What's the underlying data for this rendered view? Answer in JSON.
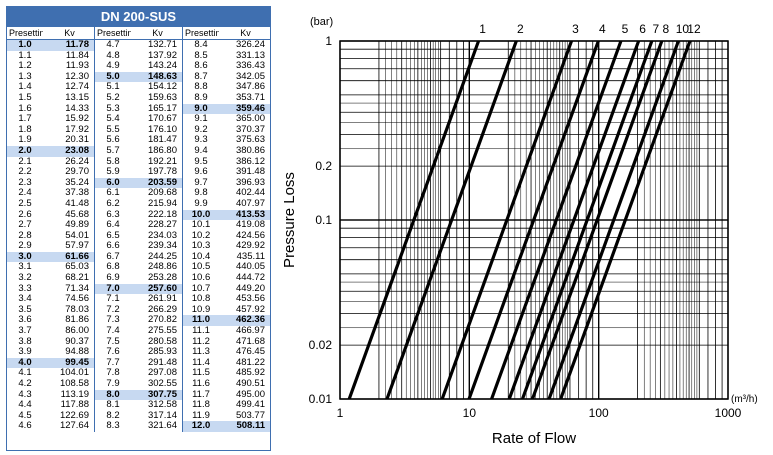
{
  "table": {
    "title": "DN 200-SUS",
    "headers": [
      "Presetting",
      "Kv",
      "Presetting",
      "Kv",
      "Presetting",
      "Kv"
    ],
    "columns": [
      [
        [
          "1.0",
          "11.78"
        ],
        [
          "1.1",
          "11.84"
        ],
        [
          "1.2",
          "11.93"
        ],
        [
          "1.3",
          "12.30"
        ],
        [
          "1.4",
          "12.74"
        ],
        [
          "1.5",
          "13.15"
        ],
        [
          "1.6",
          "14.33"
        ],
        [
          "1.7",
          "15.92"
        ],
        [
          "1.8",
          "17.92"
        ],
        [
          "1.9",
          "20.31"
        ],
        [
          "2.0",
          "23.08"
        ],
        [
          "2.1",
          "26.24"
        ],
        [
          "2.2",
          "29.70"
        ],
        [
          "2.3",
          "35.24"
        ],
        [
          "2.4",
          "37.38"
        ],
        [
          "2.5",
          "41.48"
        ],
        [
          "2.6",
          "45.68"
        ],
        [
          "2.7",
          "49.89"
        ],
        [
          "2.8",
          "54.01"
        ],
        [
          "2.9",
          "57.97"
        ],
        [
          "3.0",
          "61.66"
        ],
        [
          "3.1",
          "65.03"
        ],
        [
          "3.2",
          "68.21"
        ],
        [
          "3.3",
          "71.34"
        ],
        [
          "3.4",
          "74.56"
        ],
        [
          "3.5",
          "78.03"
        ],
        [
          "3.6",
          "81.86"
        ],
        [
          "3.7",
          "86.00"
        ],
        [
          "3.8",
          "90.37"
        ],
        [
          "3.9",
          "94.88"
        ],
        [
          "4.0",
          "99.45"
        ],
        [
          "4.1",
          "104.01"
        ],
        [
          "4.2",
          "108.58"
        ],
        [
          "4.3",
          "113.19"
        ],
        [
          "4.4",
          "117.88"
        ],
        [
          "4.5",
          "122.69"
        ],
        [
          "4.6",
          "127.64"
        ]
      ],
      [
        [
          "4.7",
          "132.71"
        ],
        [
          "4.8",
          "137.92"
        ],
        [
          "4.9",
          "143.24"
        ],
        [
          "5.0",
          "148.63"
        ],
        [
          "5.1",
          "154.12"
        ],
        [
          "5.2",
          "159.63"
        ],
        [
          "5.3",
          "165.17"
        ],
        [
          "5.4",
          "170.67"
        ],
        [
          "5.5",
          "176.10"
        ],
        [
          "5.6",
          "181.47"
        ],
        [
          "5.7",
          "186.80"
        ],
        [
          "5.8",
          "192.21"
        ],
        [
          "5.9",
          "197.78"
        ],
        [
          "6.0",
          "203.59"
        ],
        [
          "6.1",
          "209.68"
        ],
        [
          "6.2",
          "215.94"
        ],
        [
          "6.3",
          "222.18"
        ],
        [
          "6.4",
          "228.27"
        ],
        [
          "6.5",
          "234.03"
        ],
        [
          "6.6",
          "239.34"
        ],
        [
          "6.7",
          "244.25"
        ],
        [
          "6.8",
          "248.86"
        ],
        [
          "6.9",
          "253.28"
        ],
        [
          "7.0",
          "257.60"
        ],
        [
          "7.1",
          "261.91"
        ],
        [
          "7.2",
          "266.29"
        ],
        [
          "7.3",
          "270.82"
        ],
        [
          "7.4",
          "275.55"
        ],
        [
          "7.5",
          "280.58"
        ],
        [
          "7.6",
          "285.93"
        ],
        [
          "7.7",
          "291.48"
        ],
        [
          "7.8",
          "297.08"
        ],
        [
          "7.9",
          "302.55"
        ],
        [
          "8.0",
          "307.75"
        ],
        [
          "8.1",
          "312.58"
        ],
        [
          "8.2",
          "317.14"
        ],
        [
          "8.3",
          "321.64"
        ]
      ],
      [
        [
          "8.4",
          "326.24"
        ],
        [
          "8.5",
          "331.13"
        ],
        [
          "8.6",
          "336.43"
        ],
        [
          "8.7",
          "342.05"
        ],
        [
          "8.8",
          "347.86"
        ],
        [
          "8.9",
          "353.71"
        ],
        [
          "9.0",
          "359.46"
        ],
        [
          "9.1",
          "365.00"
        ],
        [
          "9.2",
          "370.37"
        ],
        [
          "9.3",
          "375.63"
        ],
        [
          "9.4",
          "380.86"
        ],
        [
          "9.5",
          "386.12"
        ],
        [
          "9.6",
          "391.48"
        ],
        [
          "9.7",
          "396.93"
        ],
        [
          "9.8",
          "402.44"
        ],
        [
          "9.9",
          "407.97"
        ],
        [
          "10.0",
          "413.53"
        ],
        [
          "10.1",
          "419.08"
        ],
        [
          "10.2",
          "424.56"
        ],
        [
          "10.3",
          "429.92"
        ],
        [
          "10.4",
          "435.11"
        ],
        [
          "10.5",
          "440.05"
        ],
        [
          "10.6",
          "444.72"
        ],
        [
          "10.7",
          "449.20"
        ],
        [
          "10.8",
          "453.56"
        ],
        [
          "10.9",
          "457.92"
        ],
        [
          "11.0",
          "462.36"
        ],
        [
          "11.1",
          "466.97"
        ],
        [
          "11.2",
          "471.68"
        ],
        [
          "11.3",
          "476.45"
        ],
        [
          "11.4",
          "481.22"
        ],
        [
          "11.5",
          "485.92"
        ],
        [
          "11.6",
          "490.51"
        ],
        [
          "11.7",
          "495.00"
        ],
        [
          "11.8",
          "499.41"
        ],
        [
          "11.9",
          "503.77"
        ],
        [
          "12.0",
          "508.11"
        ]
      ]
    ],
    "highlighted": [
      "1.0",
      "2.0",
      "3.0",
      "4.0",
      "5.0",
      "6.0",
      "7.0",
      "8.0",
      "9.0",
      "10.0",
      "11.0",
      "12.0"
    ],
    "accent_color": "#3f6fb0",
    "highlight_color": "#c7d9f1"
  },
  "chart_data": {
    "type": "line",
    "xlabel": "Rate of Flow",
    "ylabel": "Pressure Loss",
    "x_unit": "(m³/h)",
    "y_unit": "(bar)",
    "x_scale": "log",
    "y_scale": "log",
    "xlim": [
      1,
      1000
    ],
    "ylim": [
      0.01,
      1
    ],
    "x_ticks": [
      "1",
      "10",
      "100",
      "1000"
    ],
    "y_ticks": [
      "0.01",
      "0.02",
      "0.1",
      "0.2",
      "1"
    ],
    "grid": true,
    "series": [
      {
        "name": "1",
        "kv": 11.78
      },
      {
        "name": "2",
        "kv": 23.08
      },
      {
        "name": "3",
        "kv": 61.66
      },
      {
        "name": "4",
        "kv": 99.45
      },
      {
        "name": "5",
        "kv": 148.63
      },
      {
        "name": "6",
        "kv": 203.59
      },
      {
        "name": "7",
        "kv": 257.6
      },
      {
        "name": "8",
        "kv": 307.75
      },
      {
        "name": "10",
        "kv": 413.53
      },
      {
        "name": "12",
        "kv": 508.11
      }
    ]
  }
}
